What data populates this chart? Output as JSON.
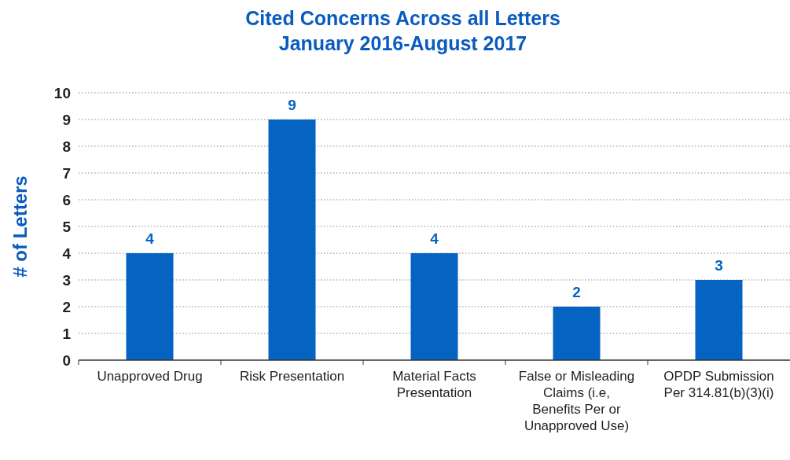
{
  "chart_data": {
    "type": "bar",
    "title": "Cited Concerns Across all Letters",
    "subtitle": "January 2016-August 2017",
    "ylabel": "# of Letters",
    "categories": [
      "Unapproved Drug",
      "Risk Presentation",
      "Material Facts Presentation",
      "False or Misleading Claims (i.e, Benefits Per or Unapproved Use)",
      "OPDP Submission Per 314.81(b)(3)(i)"
    ],
    "values": [
      4,
      9,
      4,
      2,
      3
    ],
    "color": "#0563c1",
    "ylim": [
      0,
      10
    ],
    "yticks": [
      0,
      1,
      2,
      3,
      4,
      5,
      6,
      7,
      8,
      9,
      10
    ],
    "grid": "y",
    "data_labels": true
  }
}
